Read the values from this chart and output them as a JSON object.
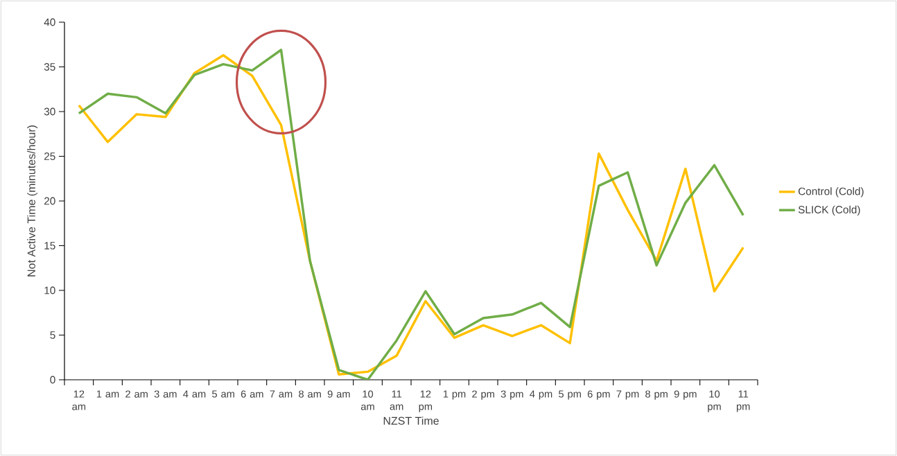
{
  "chart_data": {
    "type": "line",
    "xlabel": "NZST Time",
    "ylabel": "Not Active Time (minutes/hour)",
    "categories": [
      "12 am",
      "1 am",
      "2 am",
      "3 am",
      "4 am",
      "5 am",
      "6 am",
      "7 am",
      "8 am",
      "9 am",
      "10 am",
      "11 am",
      "12 pm",
      "1 pm",
      "2 pm",
      "3 pm",
      "4 pm",
      "5 pm",
      "6 pm",
      "7 pm",
      "8 pm",
      "9 pm",
      "10 pm",
      "11 pm"
    ],
    "series": [
      {
        "name": "Control (Cold)",
        "color": "#ffc000",
        "values": [
          30.7,
          26.6,
          29.7,
          29.4,
          34.3,
          36.3,
          34.0,
          28.5,
          13.3,
          0.6,
          0.9,
          2.7,
          8.8,
          4.7,
          6.1,
          4.9,
          6.1,
          4.1,
          25.3,
          19.0,
          13.3,
          23.6,
          9.9,
          14.8
        ]
      },
      {
        "name": "SLICK (Cold)",
        "color": "#70ad47",
        "values": [
          29.8,
          32.0,
          31.6,
          29.8,
          34.1,
          35.3,
          34.6,
          36.9,
          13.3,
          1.1,
          0.0,
          4.4,
          9.9,
          5.1,
          6.9,
          7.3,
          8.6,
          5.9,
          21.7,
          23.2,
          12.8,
          19.8,
          24.0,
          18.4
        ]
      }
    ],
    "ylim": [
      0,
      40
    ],
    "yticks": [
      0,
      5,
      10,
      15,
      20,
      25,
      30,
      35,
      40
    ],
    "grid": false,
    "legend": "right",
    "marker": "none",
    "line_style": "solid"
  }
}
